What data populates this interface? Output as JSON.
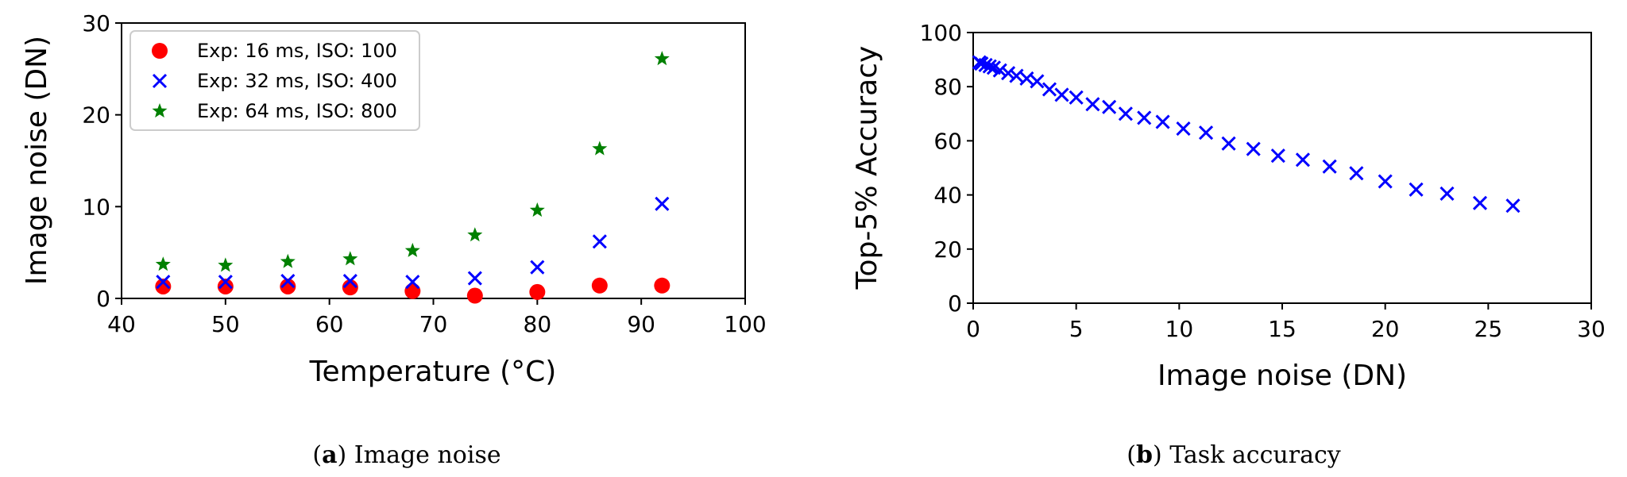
{
  "figure": {
    "caption_a_letter": "a",
    "caption_a_text": "Image noise",
    "caption_b_letter": "b",
    "caption_b_text": "Task accuracy"
  },
  "colors": {
    "red": "#ff0000",
    "blue": "#0000ff",
    "green": "#008000"
  },
  "chart_data": [
    {
      "type": "scatter",
      "title": "",
      "xlabel": "Temperature (°C)",
      "ylabel": "Image noise (DN)",
      "xlim": [
        40,
        100
      ],
      "ylim": [
        0,
        30
      ],
      "xticks": [
        40,
        50,
        60,
        70,
        80,
        90,
        100
      ],
      "yticks": [
        0,
        10,
        20,
        30
      ],
      "grid": false,
      "legend_position": "top-left",
      "x": [
        44,
        50,
        56,
        62,
        68,
        74,
        80,
        86,
        92
      ],
      "series": [
        {
          "name": "Exp: 16 ms, ISO: 100",
          "marker": "circle",
          "color": "#ff0000",
          "values": [
            1.3,
            1.3,
            1.3,
            1.2,
            0.8,
            0.3,
            0.7,
            1.4,
            1.4
          ]
        },
        {
          "name": "Exp: 32 ms, ISO: 400",
          "marker": "x",
          "color": "#0000ff",
          "values": [
            1.8,
            1.8,
            1.9,
            1.9,
            1.8,
            2.2,
            3.4,
            6.2,
            10.3
          ]
        },
        {
          "name": "Exp: 64 ms, ISO: 800",
          "marker": "star",
          "color": "#008000",
          "values": [
            3.7,
            3.6,
            4.0,
            4.3,
            5.2,
            6.9,
            9.6,
            16.3,
            26.1
          ]
        }
      ]
    },
    {
      "type": "scatter",
      "title": "",
      "xlabel": "Image noise (DN)",
      "ylabel": "Top-5% Accuracy",
      "xlim": [
        0,
        30
      ],
      "ylim": [
        0,
        100
      ],
      "xticks": [
        0,
        5,
        10,
        15,
        20,
        25,
        30
      ],
      "yticks": [
        0,
        20,
        40,
        60,
        80,
        100
      ],
      "grid": false,
      "series": [
        {
          "name": "",
          "marker": "x",
          "color": "#0000ff",
          "x": [
            0.3,
            0.4,
            0.6,
            0.8,
            1.0,
            1.3,
            1.7,
            2.1,
            2.6,
            3.1,
            3.7,
            4.3,
            5.0,
            5.8,
            6.6,
            7.4,
            8.3,
            9.2,
            10.2,
            11.3,
            12.4,
            13.6,
            14.8,
            16.0,
            17.3,
            18.6,
            20.0,
            21.5,
            23.0,
            24.6,
            26.2
          ],
          "values": [
            89,
            88.5,
            88,
            87.5,
            87,
            86,
            85,
            84,
            83,
            82,
            79,
            77,
            76,
            73.5,
            72.5,
            70,
            68.5,
            67,
            64.5,
            63,
            59,
            57,
            54.5,
            53,
            50.5,
            48,
            45,
            42,
            40.5,
            37,
            36
          ]
        }
      ]
    }
  ]
}
